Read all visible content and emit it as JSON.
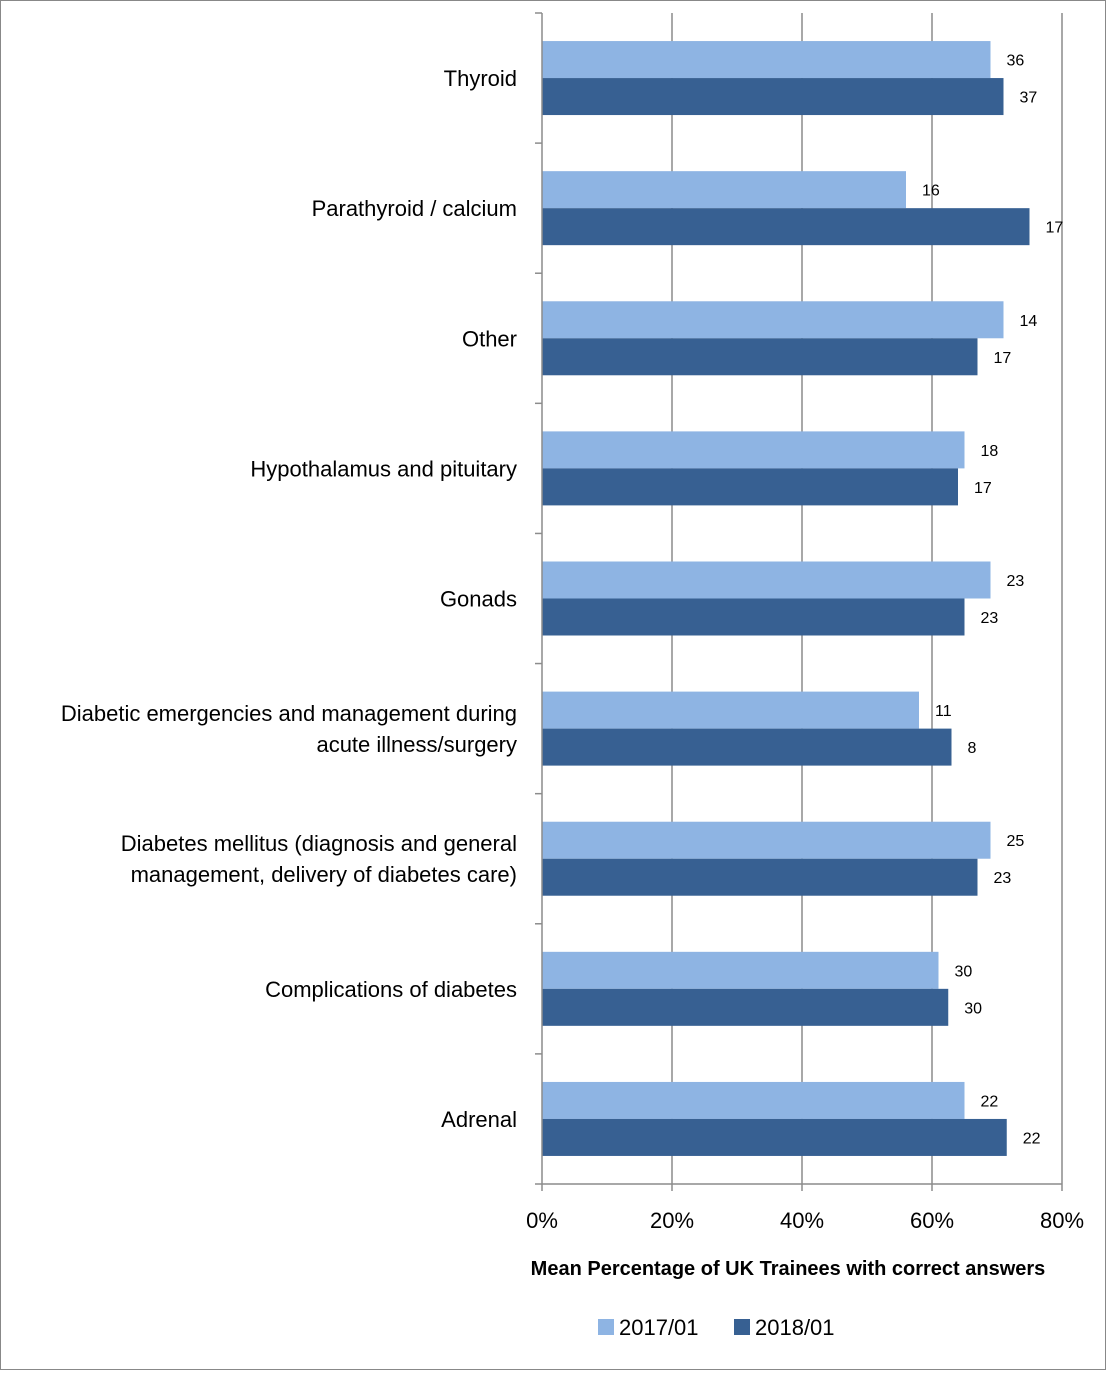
{
  "chart_data": {
    "type": "bar",
    "orientation": "horizontal",
    "title": "",
    "xlabel": "Mean Percentage of UK Trainees with correct answers",
    "ylabel": "",
    "xlim": [
      0,
      80
    ],
    "x_ticks": [
      "0%",
      "20%",
      "40%",
      "60%",
      "80%"
    ],
    "grid": "vertical gridlines",
    "legend_position": "bottom",
    "categories": [
      [
        "Thyroid"
      ],
      [
        "Parathyroid / calcium"
      ],
      [
        "Other"
      ],
      [
        "Hypothalamus and pituitary"
      ],
      [
        "Gonads"
      ],
      [
        "Diabetic emergencies and management during",
        "acute illness/surgery"
      ],
      [
        "Diabetes mellitus (diagnosis and general",
        "management, delivery of diabetes care)"
      ],
      [
        "Complications of diabetes"
      ],
      [
        "Adrenal"
      ]
    ],
    "series": [
      {
        "name": "2017/01",
        "color": "#8eb4e3",
        "values": [
          69,
          56,
          71,
          65,
          69,
          58,
          69,
          61,
          65
        ],
        "labels": [
          "36",
          "16",
          "14",
          "18",
          "23",
          "11",
          "25",
          "30",
          "22"
        ]
      },
      {
        "name": "2018/01",
        "color": "#376092",
        "values": [
          71,
          75,
          67,
          64,
          65,
          63,
          67,
          62.5,
          71.5
        ],
        "labels": [
          "37",
          "17",
          "17",
          "17",
          "23",
          "8",
          "23",
          "30",
          "22"
        ]
      }
    ]
  }
}
